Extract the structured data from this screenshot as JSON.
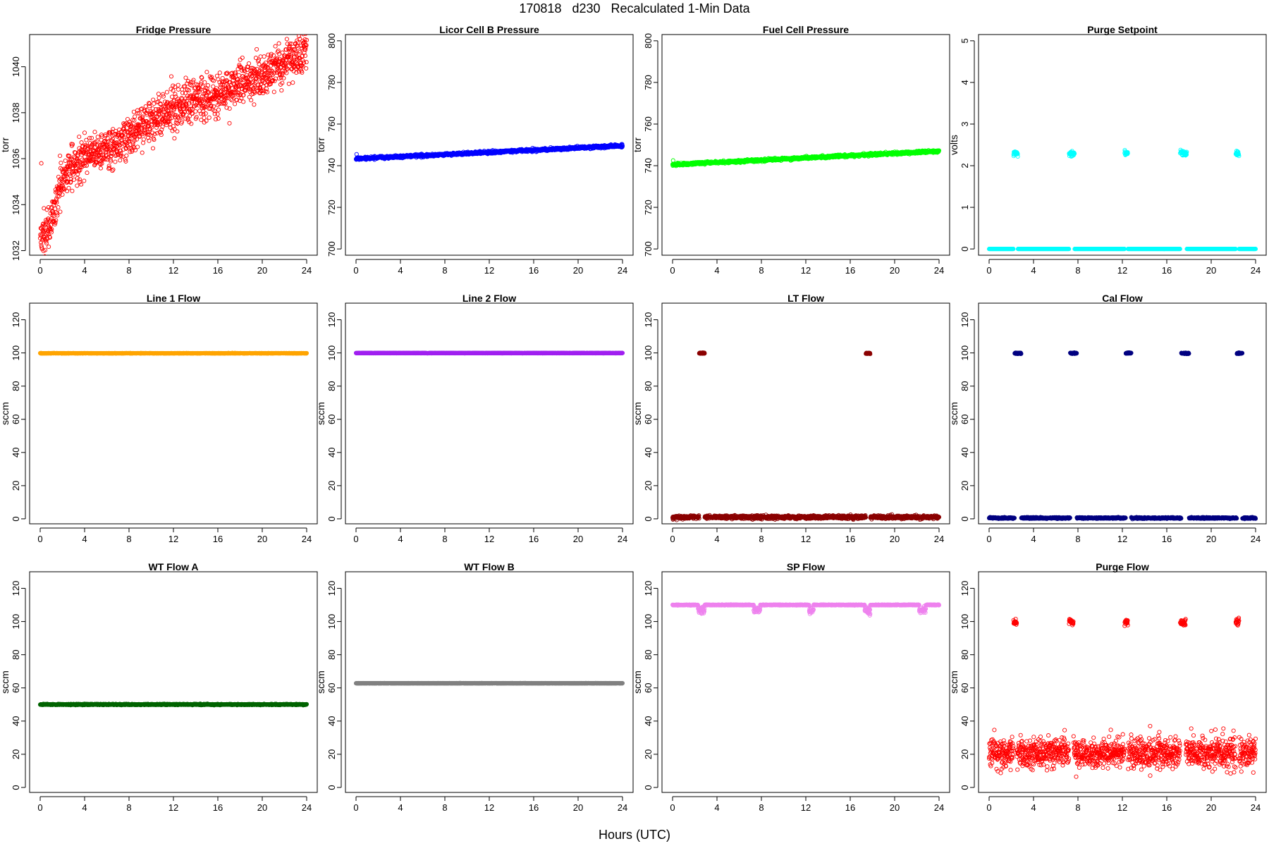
{
  "figure": {
    "title": "170818   d230   Recalculated 1-Min Data",
    "xlabel": "Hours (UTC)"
  },
  "chart_data": [
    {
      "type": "scatter",
      "title": "Fridge Pressure",
      "ylabel": "torr",
      "color": "#ff0000",
      "xlim": [
        0,
        24
      ],
      "ylim": [
        1031.8,
        1041.4
      ],
      "yticks": [
        1032,
        1034,
        1036,
        1038,
        1040
      ],
      "xticks": [
        0,
        4,
        8,
        12,
        16,
        20,
        24
      ],
      "generator": "trend",
      "points": 1440,
      "noise": 0.45,
      "trend": [
        [
          0,
          1032.4
        ],
        [
          1,
          1033.2
        ],
        [
          2,
          1035.2
        ],
        [
          4,
          1036.2
        ],
        [
          6,
          1036.4
        ],
        [
          8,
          1037.0
        ],
        [
          10,
          1037.6
        ],
        [
          12,
          1038.2
        ],
        [
          14,
          1038.6
        ],
        [
          16,
          1038.8
        ],
        [
          18,
          1039.2
        ],
        [
          20,
          1039.6
        ],
        [
          22,
          1040.2
        ],
        [
          24,
          1040.6
        ]
      ],
      "outliers": [
        [
          0.1,
          1035.8
        ]
      ]
    },
    {
      "type": "scatter",
      "title": "Licor Cell B Pressure",
      "ylabel": "torr",
      "color": "#0000ff",
      "xlim": [
        0,
        24
      ],
      "ylim": [
        697,
        803
      ],
      "yticks": [
        700,
        720,
        740,
        760,
        780,
        800
      ],
      "xticks": [
        0,
        4,
        8,
        12,
        16,
        20,
        24
      ],
      "generator": "trend",
      "points": 1440,
      "noise": 0.3,
      "trend": [
        [
          0,
          743.3
        ],
        [
          24,
          749.6
        ]
      ],
      "outliers": [
        [
          0.05,
          745.5
        ]
      ]
    },
    {
      "type": "scatter",
      "title": "Fuel Cell Pressure",
      "ylabel": "torr",
      "color": "#00ff00",
      "xlim": [
        0,
        24
      ],
      "ylim": [
        697,
        803
      ],
      "yticks": [
        700,
        720,
        740,
        760,
        780,
        800
      ],
      "xticks": [
        0,
        4,
        8,
        12,
        16,
        20,
        24
      ],
      "generator": "trend",
      "points": 1440,
      "noise": 0.3,
      "trend": [
        [
          0,
          740.5
        ],
        [
          24,
          747.0
        ]
      ],
      "outliers": [
        [
          0.05,
          742.5
        ]
      ]
    },
    {
      "type": "scatter",
      "title": "Purge Setpoint",
      "ylabel": "volts",
      "color": "#00ffff",
      "xlim": [
        0,
        24
      ],
      "ylim": [
        -0.15,
        5.15
      ],
      "yticks": [
        0,
        1,
        2,
        3,
        4,
        5
      ],
      "xticks": [
        0,
        4,
        8,
        12,
        16,
        20,
        24
      ],
      "generator": "baseline_bursts",
      "points": 1440,
      "baseline": 0.0,
      "noise": 0.0,
      "burst_value": 2.3,
      "burst_noise": 0.03,
      "bursts": [
        [
          2.2,
          2.6
        ],
        [
          7.2,
          7.7
        ],
        [
          12.2,
          12.5
        ],
        [
          17.2,
          17.8
        ],
        [
          22.2,
          22.5
        ]
      ]
    },
    {
      "type": "scatter",
      "title": "Line 1 Flow",
      "ylabel": "sccm",
      "color": "#ffa500",
      "xlim": [
        0,
        24
      ],
      "ylim": [
        -3,
        130
      ],
      "yticks": [
        0,
        20,
        40,
        60,
        80,
        100,
        120
      ],
      "xticks": [
        0,
        4,
        8,
        12,
        16,
        20,
        24
      ],
      "generator": "trend",
      "points": 1440,
      "noise": 0.05,
      "trend": [
        [
          0,
          99.8
        ],
        [
          24,
          99.8
        ]
      ]
    },
    {
      "type": "scatter",
      "title": "Line 2 Flow",
      "ylabel": "sccm",
      "color": "#a020f0",
      "xlim": [
        0,
        24
      ],
      "ylim": [
        -3,
        130
      ],
      "yticks": [
        0,
        20,
        40,
        60,
        80,
        100,
        120
      ],
      "xticks": [
        0,
        4,
        8,
        12,
        16,
        20,
        24
      ],
      "generator": "trend",
      "points": 1440,
      "noise": 0.05,
      "trend": [
        [
          0,
          99.9
        ],
        [
          24,
          99.9
        ]
      ]
    },
    {
      "type": "scatter",
      "title": "LT Flow",
      "ylabel": "sccm",
      "color": "#8b0000",
      "xlim": [
        0,
        24
      ],
      "ylim": [
        -3,
        130
      ],
      "yticks": [
        0,
        20,
        40,
        60,
        80,
        100,
        120
      ],
      "xticks": [
        0,
        4,
        8,
        12,
        16,
        20,
        24
      ],
      "generator": "baseline_bursts",
      "points": 1440,
      "baseline": 1.0,
      "noise": 0.5,
      "burst_value": 99.8,
      "burst_noise": 0.2,
      "bursts": [
        [
          2.4,
          2.9
        ],
        [
          17.4,
          17.8
        ]
      ]
    },
    {
      "type": "scatter",
      "title": "Cal Flow",
      "ylabel": "sccm",
      "color": "#000080",
      "xlim": [
        0,
        24
      ],
      "ylim": [
        -3,
        130
      ],
      "yticks": [
        0,
        20,
        40,
        60,
        80,
        100,
        120
      ],
      "xticks": [
        0,
        4,
        8,
        12,
        16,
        20,
        24
      ],
      "generator": "baseline_bursts",
      "points": 1440,
      "baseline": 0.5,
      "noise": 0.2,
      "burst_value": 99.8,
      "burst_noise": 0.2,
      "bursts": [
        [
          2.3,
          2.9
        ],
        [
          7.3,
          7.9
        ],
        [
          12.3,
          12.8
        ],
        [
          17.3,
          18.0
        ],
        [
          22.3,
          22.8
        ]
      ]
    },
    {
      "type": "scatter",
      "title": "WT Flow A",
      "ylabel": "sccm",
      "color": "#006400",
      "xlim": [
        0,
        24
      ],
      "ylim": [
        -3,
        130
      ],
      "yticks": [
        0,
        20,
        40,
        60,
        80,
        100,
        120
      ],
      "xticks": [
        0,
        4,
        8,
        12,
        16,
        20,
        24
      ],
      "generator": "trend",
      "points": 1440,
      "noise": 0.15,
      "trend": [
        [
          0,
          50.0
        ],
        [
          24,
          50.0
        ]
      ]
    },
    {
      "type": "scatter",
      "title": "WT Flow B",
      "ylabel": "sccm",
      "color": "#808080",
      "xlim": [
        0,
        24
      ],
      "ylim": [
        -3,
        130
      ],
      "yticks": [
        0,
        20,
        40,
        60,
        80,
        100,
        120
      ],
      "xticks": [
        0,
        4,
        8,
        12,
        16,
        20,
        24
      ],
      "generator": "trend",
      "points": 1440,
      "noise": 0.05,
      "trend": [
        [
          0,
          62.8
        ],
        [
          24,
          62.8
        ]
      ]
    },
    {
      "type": "scatter",
      "title": "SP Flow",
      "ylabel": "sccm",
      "color": "#ee82ee",
      "xlim": [
        0,
        24
      ],
      "ylim": [
        -3,
        130
      ],
      "yticks": [
        0,
        20,
        40,
        60,
        80,
        100,
        120
      ],
      "xticks": [
        0,
        4,
        8,
        12,
        16,
        20,
        24
      ],
      "generator": "baseline_bursts",
      "points": 1440,
      "baseline": 110.0,
      "noise": 0.1,
      "burst_value": 107.0,
      "burst_noise": 1.0,
      "bursts": [
        [
          2.3,
          2.9
        ],
        [
          7.3,
          7.9
        ],
        [
          12.3,
          12.7
        ],
        [
          17.3,
          17.8
        ],
        [
          22.2,
          22.8
        ]
      ],
      "outliers": [
        [
          2.8,
          105.0
        ],
        [
          17.6,
          105.0
        ]
      ]
    },
    {
      "type": "scatter",
      "title": "Purge Flow",
      "ylabel": "sccm",
      "color": "#ff0000",
      "xlim": [
        0,
        24
      ],
      "ylim": [
        -3,
        130
      ],
      "yticks": [
        0,
        20,
        40,
        60,
        80,
        100,
        120
      ],
      "xticks": [
        0,
        4,
        8,
        12,
        16,
        20,
        24
      ],
      "generator": "baseline_bursts",
      "points": 1440,
      "baseline": 21.0,
      "noise": 4.5,
      "burst_value": 99.5,
      "burst_noise": 1.0,
      "bursts": [
        [
          2.2,
          2.5
        ],
        [
          7.2,
          7.6
        ],
        [
          12.2,
          12.5
        ],
        [
          17.2,
          17.7
        ],
        [
          22.2,
          22.5
        ]
      ],
      "outliers": [
        [
          14.5,
          37.0
        ],
        [
          6.8,
          34.5
        ],
        [
          18.2,
          35.5
        ],
        [
          23.8,
          9.0
        ]
      ]
    }
  ]
}
